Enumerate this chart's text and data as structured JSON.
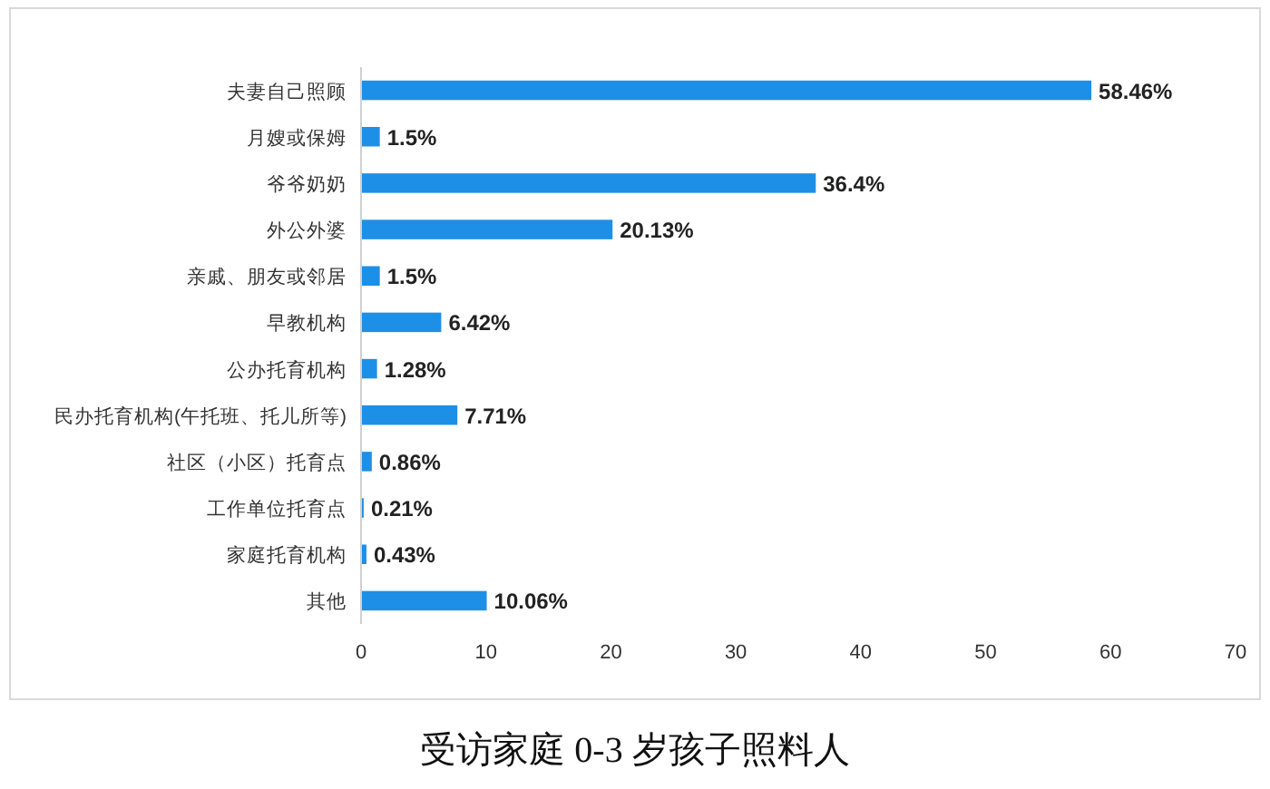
{
  "chart_data": {
    "type": "bar",
    "orientation": "horizontal",
    "title": "受访家庭 0-3 岁孩子照料人",
    "categories": [
      "夫妻自己照顾",
      "月嫂或保姆",
      "爷爷奶奶",
      "外公外婆",
      "亲戚、朋友或邻居",
      "早教机构",
      "公办托育机构",
      "民办托育机构(午托班、托儿所等)",
      "社区（小区）托育点",
      "工作单位托育点",
      "家庭托育机构",
      "其他"
    ],
    "values": [
      58.46,
      1.5,
      36.4,
      20.13,
      1.5,
      6.42,
      1.28,
      7.71,
      0.86,
      0.21,
      0.43,
      10.06
    ],
    "value_labels": [
      "58.46%",
      "1.5%",
      "36.4%",
      "20.13%",
      "1.5%",
      "6.42%",
      "1.28%",
      "7.71%",
      "0.86%",
      "0.21%",
      "0.43%",
      "10.06%"
    ],
    "color": "#1e8fe6",
    "xlim": [
      0,
      70
    ],
    "xticks": [
      0,
      10,
      20,
      30,
      40,
      50,
      60,
      70
    ]
  }
}
